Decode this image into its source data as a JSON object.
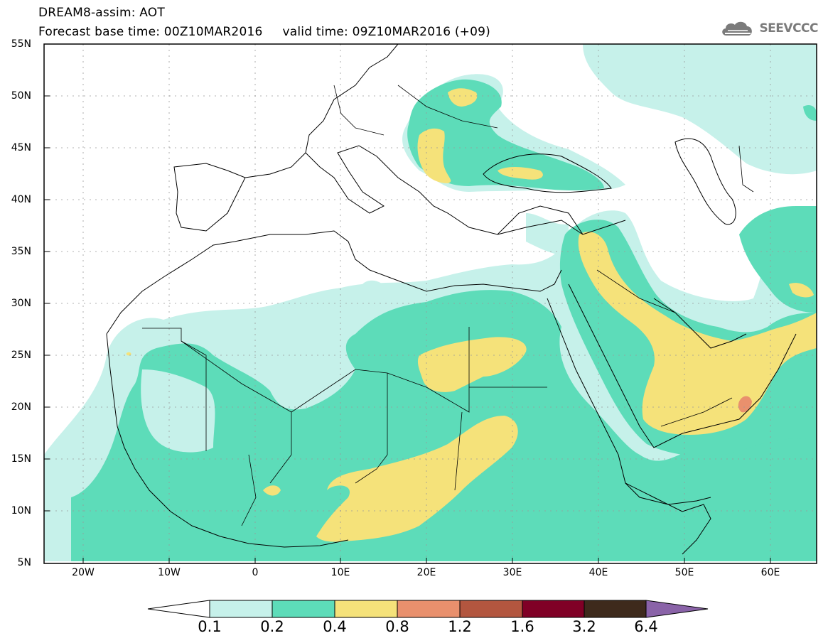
{
  "header": {
    "title_line1": "DREAM8-assim: AOT",
    "title_line2": "Forecast base time: 00Z10MAR2016     valid time: 09Z10MAR2016 (+09)",
    "logo_text": "SEEVCCC"
  },
  "map": {
    "variable": "AOT",
    "lat_labels": [
      "55N",
      "50N",
      "45N",
      "40N",
      "35N",
      "30N",
      "25N",
      "20N",
      "15N",
      "10N",
      "5N"
    ],
    "lon_labels": [
      "20W",
      "10W",
      "0",
      "10E",
      "20E",
      "30E",
      "40E",
      "50E",
      "60E"
    ],
    "region": {
      "lon_min": -25,
      "lon_max": 65,
      "lat_min": 5,
      "lat_max": 55
    }
  },
  "colorbar": {
    "labels": [
      "0.1",
      "0.2",
      "0.4",
      "0.8",
      "1.2",
      "1.6",
      "3.2",
      "6.4"
    ],
    "colors": [
      "#ffffff",
      "#c6f1ea",
      "#5ddcb9",
      "#f5e27a",
      "#e9906d",
      "#b3563f",
      "#800026",
      "#3e2a1c",
      "#8a63a8"
    ],
    "levels": [
      {
        "range": "0.1-0.2",
        "color": "#c6f1ea"
      },
      {
        "range": "0.2-0.4",
        "color": "#5ddcb9"
      },
      {
        "range": "0.4-0.8",
        "color": "#f5e27a"
      },
      {
        "range": "0.8-1.2",
        "color": "#e9906d"
      },
      {
        "range": "1.2-1.6",
        "color": "#b3563f"
      },
      {
        "range": "1.6-3.2",
        "color": "#800026"
      },
      {
        "range": "3.2-6.4",
        "color": "#3e2a1c"
      },
      {
        "range": ">6.4",
        "color": "#8a63a8"
      }
    ]
  }
}
